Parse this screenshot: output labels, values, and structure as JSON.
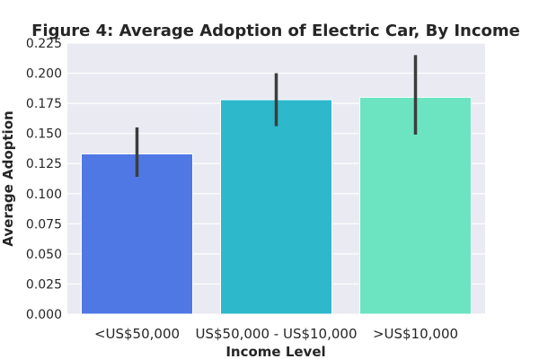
{
  "chart_data": {
    "type": "bar",
    "title": "Figure 4: Average Adoption of Electric Car, By Income",
    "xlabel": "Income Level",
    "ylabel": "Average Adoption",
    "categories": [
      "<US$50,000",
      "US$50,000 - US$10,000",
      ">US$10,000"
    ],
    "values": [
      0.133,
      0.178,
      0.18
    ],
    "error_low": [
      0.114,
      0.156,
      0.149
    ],
    "error_high": [
      0.155,
      0.2,
      0.215
    ],
    "ylim": [
      0,
      0.225
    ],
    "yticks": [
      "0.000",
      "0.025",
      "0.050",
      "0.075",
      "0.100",
      "0.125",
      "0.150",
      "0.175",
      "0.200",
      "0.225"
    ],
    "colors": [
      "#4f78e5",
      "#2eb8cc",
      "#6ce4c2"
    ],
    "error_color": "#3d3d3d",
    "background": "#eaeaf2",
    "grid": true
  }
}
